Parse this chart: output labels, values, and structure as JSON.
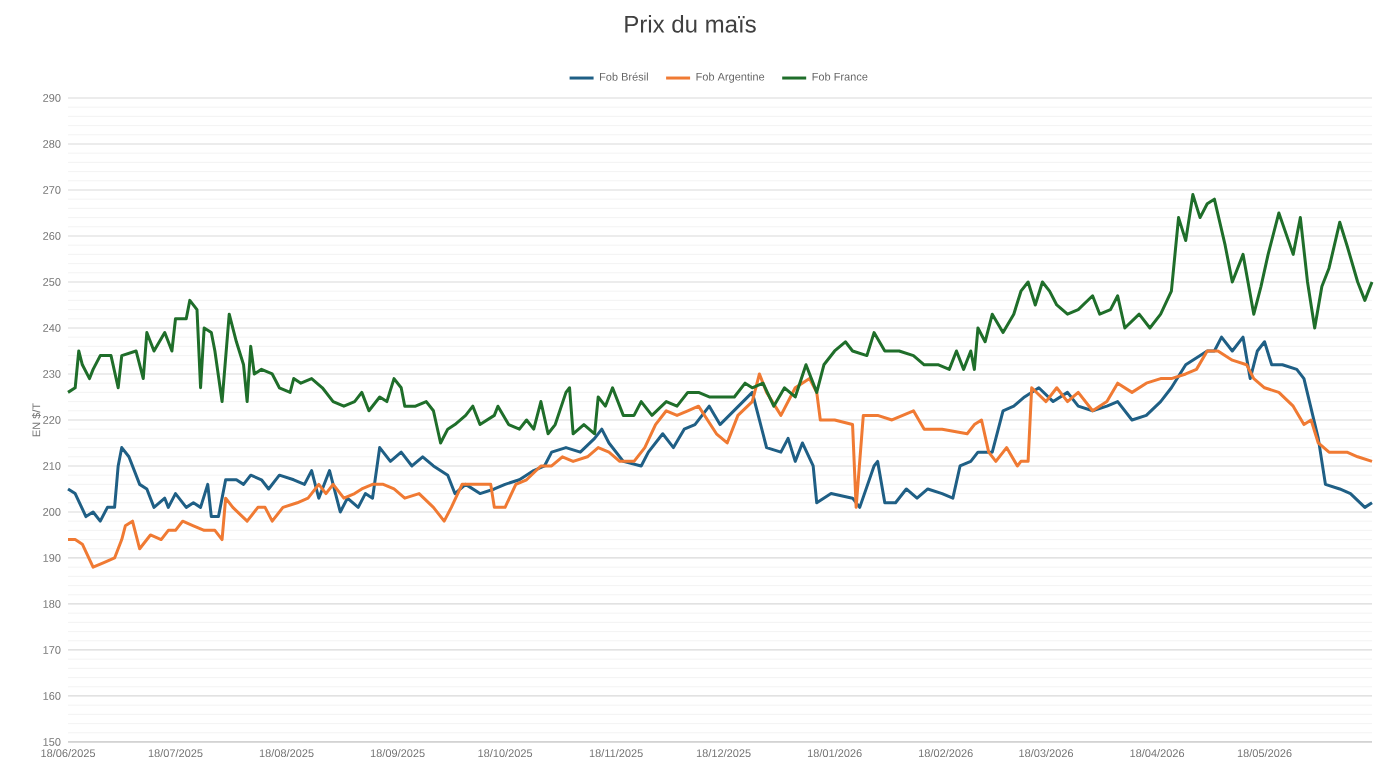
{
  "chart_data": {
    "type": "line",
    "title": "Prix du maïs",
    "ylabel": "EN $/T",
    "xlim": [
      "2025-06-18",
      "2026-06-17"
    ],
    "ylim": [
      150,
      290
    ],
    "xticks": [
      {
        "value": "2025-06-18",
        "label": "18/06/2025"
      },
      {
        "value": "2025-07-18",
        "label": "18/07/2025"
      },
      {
        "value": "2025-08-18",
        "label": "18/08/2025"
      },
      {
        "value": "2025-09-18",
        "label": "18/09/2025"
      },
      {
        "value": "2025-10-18",
        "label": "18/10/2025"
      },
      {
        "value": "2025-11-18",
        "label": "18/11/2025"
      },
      {
        "value": "2025-12-18",
        "label": "18/12/2025"
      },
      {
        "value": "2026-01-18",
        "label": "18/01/2026"
      },
      {
        "value": "2026-02-18",
        "label": "18/02/2026"
      },
      {
        "value": "2026-03-18",
        "label": "18/03/2026"
      },
      {
        "value": "2026-04-18",
        "label": "18/04/2026"
      },
      {
        "value": "2026-05-18",
        "label": "18/05/2026"
      }
    ],
    "yticks": [
      150,
      160,
      170,
      180,
      190,
      200,
      210,
      220,
      230,
      240,
      250,
      260,
      270,
      280,
      290
    ],
    "grid": "y",
    "legend": "top",
    "line_style": "solid",
    "series": [
      {
        "name": "Fob Brésil",
        "color": "#1f5f85",
        "x": [
          "2025-06-18",
          "2025-06-20",
          "2025-06-23",
          "2025-06-25",
          "2025-06-27",
          "2025-06-29",
          "2025-07-01",
          "2025-07-02",
          "2025-07-03",
          "2025-07-05",
          "2025-07-08",
          "2025-07-10",
          "2025-07-12",
          "2025-07-15",
          "2025-07-16",
          "2025-07-18",
          "2025-07-21",
          "2025-07-23",
          "2025-07-25",
          "2025-07-27",
          "2025-07-28",
          "2025-07-30",
          "2025-08-01",
          "2025-08-04",
          "2025-08-06",
          "2025-08-08",
          "2025-08-11",
          "2025-08-13",
          "2025-08-16",
          "2025-08-20",
          "2025-08-23",
          "2025-08-25",
          "2025-08-27",
          "2025-08-30",
          "2025-09-02",
          "2025-09-04",
          "2025-09-07",
          "2025-09-09",
          "2025-09-11",
          "2025-09-13",
          "2025-09-16",
          "2025-09-19",
          "2025-09-22",
          "2025-09-25",
          "2025-09-28",
          "2025-10-02",
          "2025-10-04",
          "2025-10-07",
          "2025-10-11",
          "2025-10-15",
          "2025-10-18",
          "2025-10-22",
          "2025-10-26",
          "2025-10-29",
          "2025-10-31",
          "2025-11-04",
          "2025-11-08",
          "2025-11-12",
          "2025-11-14",
          "2025-11-16",
          "2025-11-20",
          "2025-11-25",
          "2025-11-27",
          "2025-12-01",
          "2025-12-04",
          "2025-12-07",
          "2025-12-10",
          "2025-12-14",
          "2025-12-17",
          "2025-12-26",
          "2025-12-28",
          "2025-12-30",
          "2026-01-03",
          "2026-01-05",
          "2026-01-07",
          "2026-01-09",
          "2026-01-12",
          "2026-01-13",
          "2026-01-17",
          "2026-01-23",
          "2026-01-25",
          "2026-01-29",
          "2026-01-30",
          "2026-02-01",
          "2026-02-04",
          "2026-02-07",
          "2026-02-10",
          "2026-02-13",
          "2026-02-17",
          "2026-02-20",
          "2026-02-22",
          "2026-02-25",
          "2026-02-27",
          "2026-03-03",
          "2026-03-06",
          "2026-03-09",
          "2026-03-12",
          "2026-03-16",
          "2026-03-20",
          "2026-03-24",
          "2026-03-27",
          "2026-03-31",
          "2026-04-04",
          "2026-04-07",
          "2026-04-11",
          "2026-04-15",
          "2026-04-19",
          "2026-04-22",
          "2026-04-26",
          "2026-05-02",
          "2026-05-04",
          "2026-05-06",
          "2026-05-09",
          "2026-05-12",
          "2026-05-14",
          "2026-05-16",
          "2026-05-18",
          "2026-05-20",
          "2026-05-23",
          "2026-05-27",
          "2026-05-29",
          "2026-06-02",
          "2026-06-04",
          "2026-06-08",
          "2026-06-11",
          "2026-06-15",
          "2026-06-17"
        ],
        "values": [
          205,
          204,
          199,
          200,
          198,
          201,
          201,
          210,
          214,
          212,
          206,
          205,
          201,
          203,
          201,
          204,
          201,
          202,
          201,
          206,
          199,
          199,
          207,
          207,
          206,
          208,
          207,
          205,
          208,
          207,
          206,
          209,
          203,
          209,
          200,
          203,
          201,
          204,
          203,
          214,
          211,
          213,
          210,
          212,
          210,
          208,
          204,
          206,
          204,
          205,
          206,
          207,
          209,
          210,
          213,
          214,
          213,
          216,
          218,
          215,
          211,
          210,
          213,
          217,
          214,
          218,
          219,
          223,
          219,
          226,
          220,
          214,
          213,
          216,
          211,
          215,
          210,
          202,
          204,
          203,
          201,
          210,
          211,
          202,
          202,
          205,
          203,
          205,
          204,
          203,
          210,
          211,
          213,
          213,
          222,
          223,
          225,
          227,
          224,
          226,
          223,
          222,
          223,
          224,
          220,
          221,
          224,
          227,
          232,
          235,
          235,
          238,
          235,
          238,
          229,
          235,
          237,
          232,
          232,
          231,
          229,
          216,
          206,
          205,
          204,
          201,
          202
        ]
      },
      {
        "name": "Fob Argentine",
        "color": "#f07a33",
        "x": [
          "2025-06-18",
          "2025-06-20",
          "2025-06-22",
          "2025-06-25",
          "2025-06-28",
          "2025-07-01",
          "2025-07-03",
          "2025-07-04",
          "2025-07-06",
          "2025-07-08",
          "2025-07-11",
          "2025-07-14",
          "2025-07-16",
          "2025-07-18",
          "2025-07-20",
          "2025-07-23",
          "2025-07-26",
          "2025-07-29",
          "2025-07-31",
          "2025-08-01",
          "2025-08-03",
          "2025-08-07",
          "2025-08-10",
          "2025-08-12",
          "2025-08-14",
          "2025-08-17",
          "2025-08-21",
          "2025-08-24",
          "2025-08-27",
          "2025-08-29",
          "2025-08-31",
          "2025-09-03",
          "2025-09-06",
          "2025-09-08",
          "2025-09-11",
          "2025-09-14",
          "2025-09-17",
          "2025-09-20",
          "2025-09-24",
          "2025-09-28",
          "2025-10-01",
          "2025-10-03",
          "2025-10-06",
          "2025-10-08",
          "2025-10-11",
          "2025-10-14",
          "2025-10-15",
          "2025-10-18",
          "2025-10-21",
          "2025-10-24",
          "2025-10-28",
          "2025-10-31",
          "2025-11-03",
          "2025-11-06",
          "2025-11-10",
          "2025-11-13",
          "2025-11-16",
          "2025-11-19",
          "2025-11-23",
          "2025-11-26",
          "2025-11-29",
          "2025-12-02",
          "2025-12-05",
          "2025-12-08",
          "2025-12-11",
          "2025-12-16",
          "2025-12-19",
          "2025-12-22",
          "2025-12-26",
          "2025-12-28",
          "2025-12-30",
          "2026-01-03",
          "2026-01-07",
          "2026-01-11",
          "2026-01-13",
          "2026-01-14",
          "2026-01-18",
          "2026-01-23",
          "2026-01-24",
          "2026-01-26",
          "2026-01-30",
          "2026-02-03",
          "2026-02-09",
          "2026-02-12",
          "2026-02-17",
          "2026-02-24",
          "2026-02-26",
          "2026-02-28",
          "2026-03-02",
          "2026-03-04",
          "2026-03-07",
          "2026-03-10",
          "2026-03-11",
          "2026-03-13",
          "2026-03-14",
          "2026-03-18",
          "2026-03-21",
          "2026-03-24",
          "2026-03-27",
          "2026-03-31",
          "2026-04-04",
          "2026-04-07",
          "2026-04-11",
          "2026-04-15",
          "2026-04-19",
          "2026-04-22",
          "2026-04-26",
          "2026-04-29",
          "2026-05-02",
          "2026-05-05",
          "2026-05-09",
          "2026-05-13",
          "2026-05-15",
          "2026-05-18",
          "2026-05-22",
          "2026-05-26",
          "2026-05-29",
          "2026-05-31",
          "2026-06-02",
          "2026-06-05",
          "2026-06-10",
          "2026-06-13",
          "2026-06-17"
        ],
        "values": [
          194,
          194,
          193,
          188,
          189,
          190,
          194,
          197,
          198,
          192,
          195,
          194,
          196,
          196,
          198,
          197,
          196,
          196,
          194,
          203,
          201,
          198,
          201,
          201,
          198,
          201,
          202,
          203,
          206,
          204,
          206,
          203,
          204,
          205,
          206,
          206,
          205,
          203,
          204,
          201,
          198,
          201,
          206,
          206,
          206,
          206,
          201,
          201,
          206,
          207,
          210,
          210,
          212,
          211,
          212,
          214,
          213,
          211,
          211,
          214,
          219,
          222,
          221,
          222,
          223,
          217,
          215,
          221,
          224,
          230,
          226,
          221,
          227,
          229,
          226,
          220,
          220,
          219,
          201,
          221,
          221,
          220,
          222,
          218,
          218,
          217,
          219,
          220,
          213,
          211,
          214,
          210,
          211,
          211,
          227,
          224,
          227,
          224,
          226,
          222,
          224,
          228,
          226,
          228,
          229,
          229,
          230,
          231,
          235,
          235,
          233,
          232,
          229,
          227,
          226,
          223,
          219,
          220,
          215,
          213,
          213,
          212,
          211
        ]
      },
      {
        "name": "Fob France",
        "color": "#1f6e2a",
        "x": [
          "2025-06-18",
          "2025-06-20",
          "2025-06-21",
          "2025-06-22",
          "2025-06-24",
          "2025-06-25",
          "2025-06-27",
          "2025-06-30",
          "2025-07-02",
          "2025-07-03",
          "2025-07-07",
          "2025-07-09",
          "2025-07-10",
          "2025-07-12",
          "2025-07-15",
          "2025-07-17",
          "2025-07-18",
          "2025-07-21",
          "2025-07-22",
          "2025-07-24",
          "2025-07-25",
          "2025-07-26",
          "2025-07-28",
          "2025-07-29",
          "2025-07-31",
          "2025-08-02",
          "2025-08-04",
          "2025-08-06",
          "2025-08-07",
          "2025-08-08",
          "2025-08-09",
          "2025-08-11",
          "2025-08-14",
          "2025-08-16",
          "2025-08-19",
          "2025-08-20",
          "2025-08-22",
          "2025-08-25",
          "2025-08-28",
          "2025-08-31",
          "2025-09-03",
          "2025-09-06",
          "2025-09-08",
          "2025-09-10",
          "2025-09-13",
          "2025-09-15",
          "2025-09-17",
          "2025-09-19",
          "2025-09-20",
          "2025-09-23",
          "2025-09-26",
          "2025-09-28",
          "2025-09-30",
          "2025-10-02",
          "2025-10-04",
          "2025-10-07",
          "2025-10-09",
          "2025-10-11",
          "2025-10-15",
          "2025-10-16",
          "2025-10-19",
          "2025-10-22",
          "2025-10-24",
          "2025-10-26",
          "2025-10-28",
          "2025-10-30",
          "2025-11-01",
          "2025-11-04",
          "2025-11-05",
          "2025-11-06",
          "2025-11-09",
          "2025-11-12",
          "2025-11-13",
          "2025-11-15",
          "2025-11-17",
          "2025-11-20",
          "2025-11-23",
          "2025-11-25",
          "2025-11-28",
          "2025-12-02",
          "2025-12-05",
          "2025-12-08",
          "2025-12-11",
          "2025-12-14",
          "2025-12-17",
          "2025-12-21",
          "2025-12-24",
          "2025-12-26",
          "2025-12-29",
          "2026-01-01",
          "2026-01-04",
          "2026-01-07",
          "2026-01-10",
          "2026-01-13",
          "2026-01-15",
          "2026-01-18",
          "2026-01-21",
          "2026-01-23",
          "2026-01-27",
          "2026-01-29",
          "2026-02-01",
          "2026-02-05",
          "2026-02-09",
          "2026-02-12",
          "2026-02-16",
          "2026-02-19",
          "2026-02-21",
          "2026-02-23",
          "2026-02-25",
          "2026-02-26",
          "2026-02-27",
          "2026-03-01",
          "2026-03-03",
          "2026-03-06",
          "2026-03-09",
          "2026-03-11",
          "2026-03-13",
          "2026-03-15",
          "2026-03-17",
          "2026-03-19",
          "2026-03-21",
          "2026-03-24",
          "2026-03-27",
          "2026-03-31",
          "2026-04-02",
          "2026-04-05",
          "2026-04-07",
          "2026-04-09",
          "2026-04-13",
          "2026-04-16",
          "2026-04-19",
          "2026-04-22",
          "2026-04-24",
          "2026-04-26",
          "2026-04-28",
          "2026-04-30",
          "2026-05-02",
          "2026-05-04",
          "2026-05-07",
          "2026-05-09",
          "2026-05-12",
          "2026-05-15",
          "2026-05-17",
          "2026-05-19",
          "2026-05-22",
          "2026-05-26",
          "2026-05-28",
          "2026-05-30",
          "2026-06-01",
          "2026-06-03",
          "2026-06-05",
          "2026-06-08",
          "2026-06-10",
          "2026-06-13",
          "2026-06-15",
          "2026-06-17"
        ],
        "values": [
          226,
          227,
          235,
          232,
          229,
          231,
          234,
          234,
          227,
          234,
          235,
          229,
          239,
          235,
          239,
          235,
          242,
          242,
          246,
          244,
          227,
          240,
          239,
          235,
          224,
          243,
          237,
          232,
          224,
          236,
          230,
          231,
          230,
          227,
          226,
          229,
          228,
          229,
          227,
          224,
          223,
          224,
          226,
          222,
          225,
          224,
          229,
          227,
          223,
          223,
          224,
          222,
          215,
          218,
          219,
          221,
          223,
          219,
          221,
          223,
          219,
          218,
          220,
          218,
          224,
          217,
          219,
          226,
          227,
          217,
          219,
          217,
          225,
          223,
          227,
          221,
          221,
          224,
          221,
          224,
          223,
          226,
          226,
          225,
          225,
          225,
          228,
          227,
          228,
          223,
          227,
          225,
          232,
          226,
          232,
          235,
          237,
          235,
          234,
          239,
          235,
          235,
          234,
          232,
          232,
          231,
          235,
          231,
          235,
          231,
          240,
          237,
          243,
          239,
          243,
          248,
          250,
          245,
          250,
          248,
          245,
          243,
          244,
          247,
          243,
          244,
          247,
          240,
          243,
          240,
          243,
          248,
          264,
          259,
          269,
          264,
          267,
          268,
          258,
          250,
          256,
          243,
          249,
          256,
          265,
          256,
          264,
          250,
          240,
          249,
          253,
          263,
          258,
          250,
          246,
          250
        ]
      }
    ]
  }
}
